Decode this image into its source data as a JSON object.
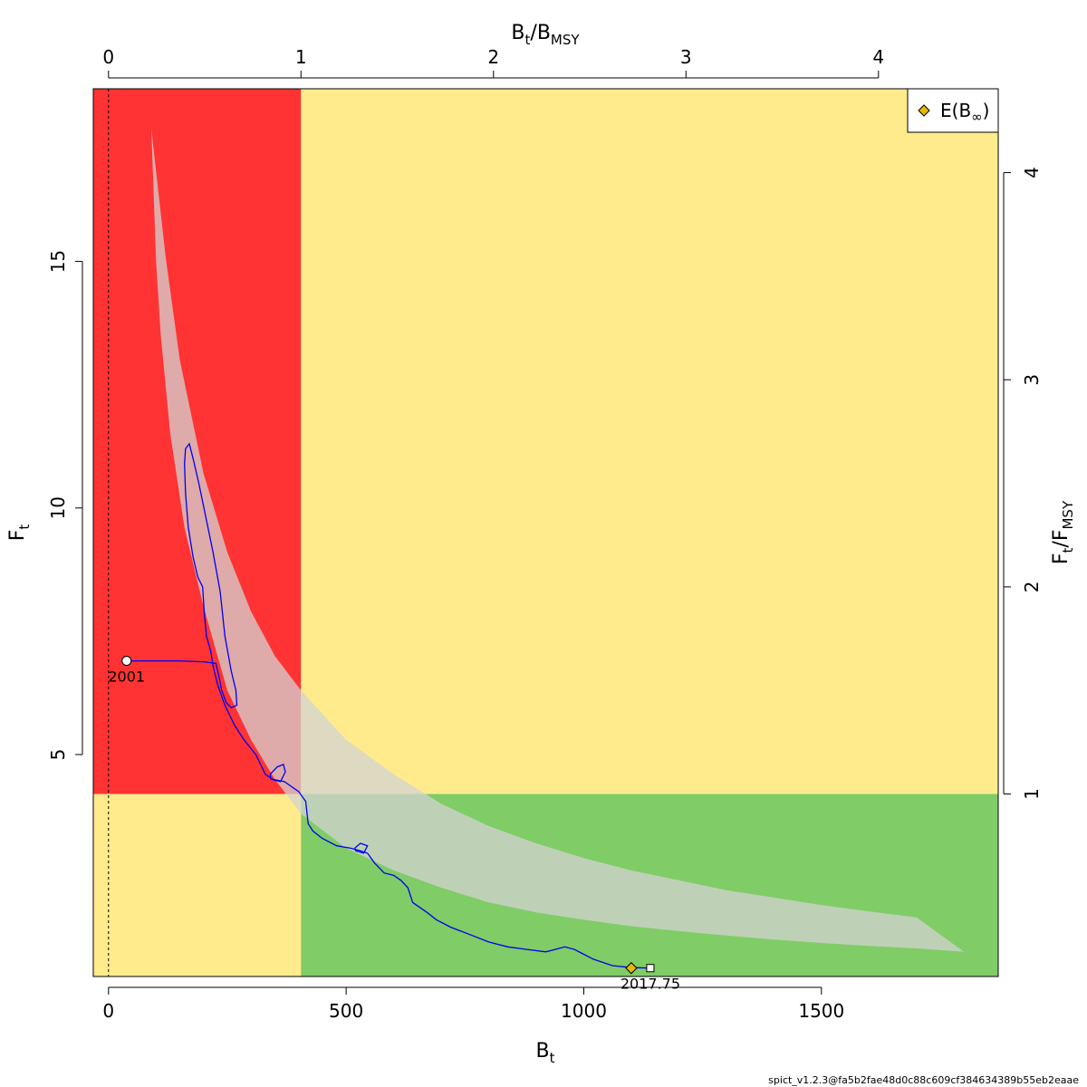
{
  "chart_data": {
    "type": "scatter",
    "x_axis": {
      "label": "B",
      "label_sub": "t",
      "ticks": [
        0,
        500,
        1000,
        1500
      ],
      "lim": [
        -32,
        1872
      ]
    },
    "y_axis": {
      "label": "F",
      "label_sub": "t",
      "ticks": [
        5,
        10,
        15
      ],
      "lim": [
        0.5,
        18.5
      ]
    },
    "x_axis_top": {
      "label_parts": [
        {
          "text": "B"
        },
        {
          "text": "t",
          "sub": true
        },
        {
          "text": "/B"
        },
        {
          "text": "MSY",
          "sub": true
        }
      ],
      "ticks": [
        0,
        1,
        2,
        3,
        4
      ],
      "ticks_text": [
        "0",
        "1",
        "2",
        "3",
        "4"
      ],
      "bmsy": 405
    },
    "y_axis_right": {
      "label_parts": [
        {
          "text": "F"
        },
        {
          "text": "t",
          "sub": true
        },
        {
          "text": "/F"
        },
        {
          "text": "MSY",
          "sub": true
        }
      ],
      "ticks": [
        1,
        2,
        3,
        4
      ],
      "ticks_text": [
        "1",
        "2",
        "3",
        "4"
      ],
      "fmsy": 4.2
    },
    "zones": [
      {
        "name": "overfished-and-overfishing",
        "color": "#ff3333"
      },
      {
        "name": "warning-zone",
        "color": "#ffeb8c"
      },
      {
        "name": "healthy-zone",
        "color": "#80cc66"
      }
    ],
    "confidence_band": {
      "color": "#d3d3d3",
      "upper": [
        [
          90,
          17.7
        ],
        [
          120,
          15.1
        ],
        [
          150,
          13.0
        ],
        [
          200,
          10.7
        ],
        [
          250,
          9.1
        ],
        [
          300,
          7.9
        ],
        [
          350,
          7.0
        ],
        [
          405,
          6.3
        ],
        [
          500,
          5.3
        ],
        [
          600,
          4.6
        ],
        [
          700,
          4.0
        ],
        [
          800,
          3.55
        ],
        [
          900,
          3.2
        ],
        [
          1000,
          2.9
        ],
        [
          1100,
          2.65
        ],
        [
          1200,
          2.45
        ],
        [
          1300,
          2.25
        ],
        [
          1400,
          2.1
        ],
        [
          1500,
          1.95
        ],
        [
          1600,
          1.82
        ],
        [
          1700,
          1.7
        ],
        [
          1800,
          1.0
        ]
      ],
      "lower": [
        [
          1800,
          1.0
        ],
        [
          1700,
          1.07
        ],
        [
          1600,
          1.12
        ],
        [
          1500,
          1.18
        ],
        [
          1400,
          1.25
        ],
        [
          1300,
          1.33
        ],
        [
          1200,
          1.42
        ],
        [
          1100,
          1.52
        ],
        [
          1000,
          1.65
        ],
        [
          900,
          1.8
        ],
        [
          800,
          2.0
        ],
        [
          700,
          2.3
        ],
        [
          600,
          2.65
        ],
        [
          500,
          3.1
        ],
        [
          405,
          3.8
        ],
        [
          350,
          4.5
        ],
        [
          300,
          5.3
        ],
        [
          250,
          6.3
        ],
        [
          200,
          8.0
        ],
        [
          160,
          9.6
        ],
        [
          130,
          11.5
        ],
        [
          110,
          13.5
        ],
        [
          100,
          15.0
        ],
        [
          90,
          17.7
        ]
      ]
    },
    "trajectory": {
      "color": "#0000ee",
      "points": [
        [
          38,
          6.9
        ],
        [
          100,
          6.9
        ],
        [
          150,
          6.9
        ],
        [
          200,
          6.88
        ],
        [
          226,
          6.85
        ],
        [
          232,
          6.6
        ],
        [
          238,
          6.3
        ],
        [
          248,
          6.05
        ],
        [
          258,
          5.95
        ],
        [
          270,
          6.0
        ],
        [
          268,
          6.3
        ],
        [
          258,
          6.7
        ],
        [
          245,
          7.4
        ],
        [
          235,
          8.3
        ],
        [
          220,
          9.1
        ],
        [
          205,
          9.8
        ],
        [
          190,
          10.5
        ],
        [
          178,
          11.0
        ],
        [
          170,
          11.3
        ],
        [
          162,
          11.2
        ],
        [
          160,
          10.9
        ],
        [
          162,
          10.3
        ],
        [
          168,
          9.6
        ],
        [
          178,
          9.0
        ],
        [
          188,
          8.6
        ],
        [
          198,
          8.4
        ],
        [
          202,
          7.8
        ],
        [
          206,
          7.4
        ],
        [
          215,
          7.1
        ],
        [
          220,
          6.8
        ],
        [
          230,
          6.4
        ],
        [
          245,
          6.0
        ],
        [
          265,
          5.6
        ],
        [
          285,
          5.3
        ],
        [
          310,
          5.0
        ],
        [
          320,
          4.8
        ],
        [
          330,
          4.6
        ],
        [
          345,
          4.5
        ],
        [
          370,
          4.45
        ],
        [
          400,
          4.25
        ],
        [
          415,
          4.05
        ],
        [
          420,
          3.6
        ],
        [
          430,
          3.45
        ],
        [
          450,
          3.3
        ],
        [
          480,
          3.15
        ],
        [
          510,
          3.1
        ],
        [
          530,
          3.05
        ],
        [
          545,
          3.0
        ],
        [
          560,
          2.8
        ],
        [
          580,
          2.6
        ],
        [
          600,
          2.55
        ],
        [
          615,
          2.45
        ],
        [
          630,
          2.3
        ],
        [
          640,
          2.0
        ],
        [
          670,
          1.8
        ],
        [
          690,
          1.65
        ],
        [
          720,
          1.5
        ],
        [
          760,
          1.35
        ],
        [
          800,
          1.2
        ],
        [
          840,
          1.1
        ],
        [
          880,
          1.05
        ],
        [
          920,
          1.0
        ],
        [
          940,
          1.05
        ],
        [
          960,
          1.1
        ],
        [
          980,
          1.05
        ],
        [
          1000,
          0.95
        ],
        [
          1020,
          0.85
        ],
        [
          1060,
          0.72
        ],
        [
          1100,
          0.68
        ],
        [
          1140,
          0.67
        ]
      ],
      "loops": [
        [
          [
            340,
            4.6
          ],
          [
            355,
            4.75
          ],
          [
            368,
            4.8
          ],
          [
            372,
            4.65
          ],
          [
            362,
            4.45
          ],
          [
            342,
            4.5
          ],
          [
            340,
            4.6
          ]
        ],
        [
          [
            518,
            3.1
          ],
          [
            530,
            3.2
          ],
          [
            545,
            3.15
          ],
          [
            537,
            3.0
          ],
          [
            520,
            3.05
          ],
          [
            518,
            3.1
          ]
        ]
      ]
    },
    "start_point": {
      "x": 38,
      "y": 6.9,
      "label": "2001"
    },
    "end_point": {
      "x": 1140,
      "y": 0.67,
      "label": "2017.75"
    },
    "e_binf": {
      "x": 1100,
      "y": 0.67,
      "color": "#e6b800"
    },
    "legend": {
      "position": "top-right",
      "items": [
        {
          "label": "E(B",
          "label_symbol": "∞",
          "label_end": ")",
          "marker": "diamond",
          "color": "#e6b800"
        }
      ]
    },
    "footer": "spict_v1.2.3@fa5b2fae48d0c88c609cf384634389b55eb2eaae"
  }
}
